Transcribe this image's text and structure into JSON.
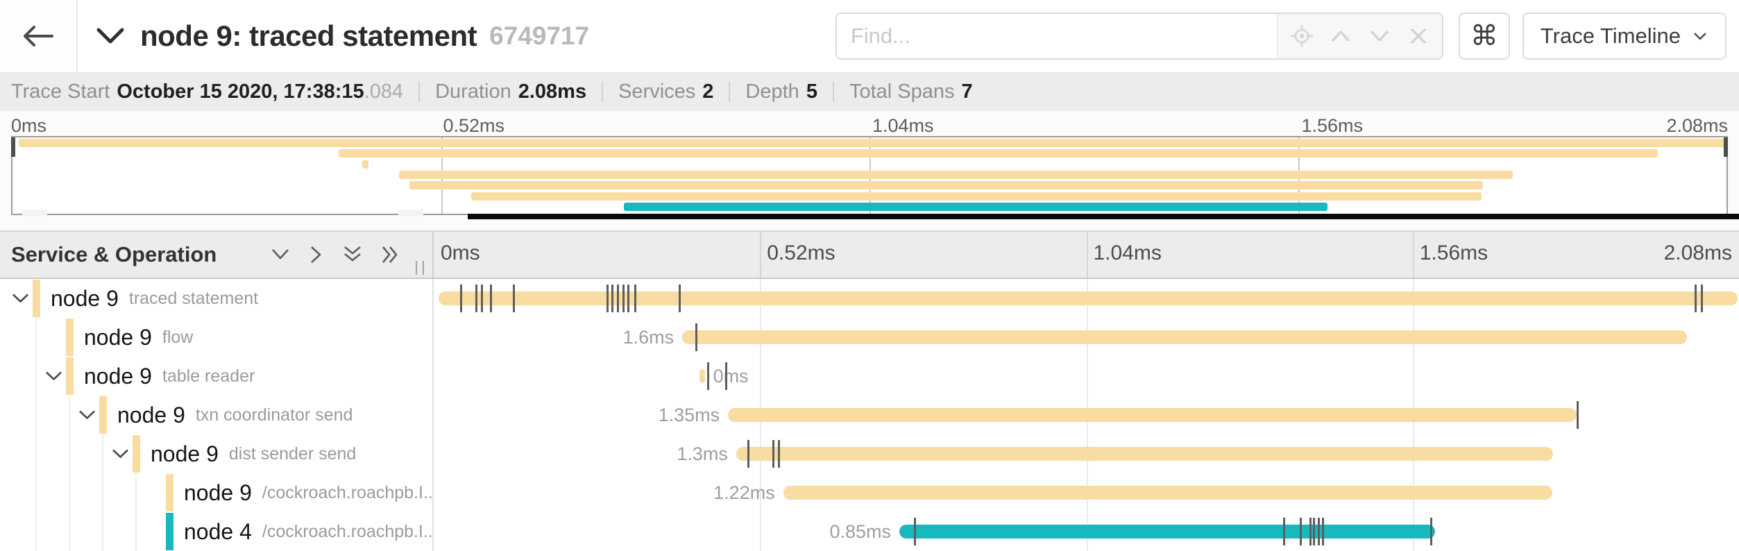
{
  "header": {
    "title": "node 9: traced statement",
    "trace_id_short": "6749717",
    "find_placeholder": "Find...",
    "command_button_label": "⌘",
    "view_selector_label": "Trace Timeline"
  },
  "metadata": {
    "items": [
      {
        "label": "Trace Start",
        "value": "October 15 2020, 17:38:15",
        "suffix": ".084"
      },
      {
        "label": "Duration",
        "value": "2.08ms",
        "suffix": ""
      },
      {
        "label": "Services",
        "value": "2",
        "suffix": ""
      },
      {
        "label": "Depth",
        "value": "5",
        "suffix": ""
      },
      {
        "label": "Total Spans",
        "value": "7",
        "suffix": ""
      }
    ]
  },
  "timeline": {
    "duration_ms": 2.08,
    "tick_labels": [
      "0ms",
      "0.52ms",
      "1.04ms",
      "1.56ms",
      "2.08ms"
    ],
    "left_header": "Service & Operation"
  },
  "colors": {
    "tan": "#F8DCA1",
    "teal": "#17B8BE"
  },
  "spans": [
    {
      "service": "node 9",
      "operation": "traced statement",
      "depth": 0,
      "expander": true,
      "color_key": "tan",
      "start_ms": 0.008,
      "end_ms": 2.078,
      "duration_label": "",
      "label_side": "none",
      "ticks_ms": [
        0.044,
        0.068,
        0.077,
        0.091,
        0.128,
        0.277,
        0.285,
        0.294,
        0.302,
        0.31,
        0.321,
        0.392,
        2.011,
        2.021
      ]
    },
    {
      "service": "node 9",
      "operation": "flow",
      "depth": 1,
      "expander": false,
      "color_key": "tan",
      "start_ms": 0.396,
      "end_ms": 1.997,
      "duration_label": "1.6ms",
      "label_side": "left",
      "ticks_ms": [
        0.418
      ]
    },
    {
      "service": "node 9",
      "operation": "table reader",
      "depth": 1,
      "expander": true,
      "color_key": "tan",
      "start_ms": 0.424,
      "end_ms": 0.432,
      "duration_label": "0ms",
      "label_side": "right",
      "ticks_ms": [
        0.437,
        0.466
      ]
    },
    {
      "service": "node 9",
      "operation": "txn coordinator send",
      "depth": 2,
      "expander": true,
      "color_key": "tan",
      "start_ms": 0.469,
      "end_ms": 1.821,
      "duration_label": "1.35ms",
      "label_side": "left",
      "ticks_ms": [
        1.823
      ]
    },
    {
      "service": "node 9",
      "operation": "dist sender send",
      "depth": 3,
      "expander": true,
      "color_key": "tan",
      "start_ms": 0.482,
      "end_ms": 1.784,
      "duration_label": "1.3ms",
      "label_side": "left",
      "ticks_ms": [
        0.501,
        0.541,
        0.55
      ]
    },
    {
      "service": "node 9",
      "operation": "/cockroach.roachpb.I...",
      "depth": 4,
      "expander": false,
      "color_key": "tan",
      "start_ms": 0.557,
      "end_ms": 1.783,
      "duration_label": "1.22ms",
      "label_side": "left",
      "ticks_ms": []
    },
    {
      "service": "node 4",
      "operation": "/cockroach.roachpb.I...",
      "depth": 4,
      "expander": false,
      "color_key": "teal",
      "start_ms": 0.742,
      "end_ms": 1.596,
      "duration_label": "0.85ms",
      "label_side": "left",
      "ticks_ms": [
        0.767,
        1.355,
        1.382,
        1.397,
        1.403,
        1.41,
        1.417,
        1.59
      ]
    }
  ]
}
